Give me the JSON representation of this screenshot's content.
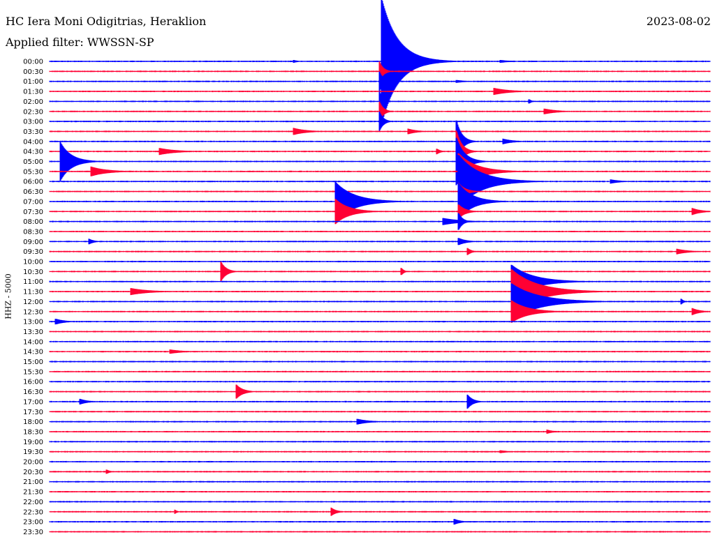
{
  "header": {
    "station": "HC Iera Moni Odigitrias, Heraklion",
    "filter": "Applied filter: WWSSN-SP",
    "date": "2023-08-02"
  },
  "chart_data": {
    "type": "line",
    "title": "HC Iera Moni Odigitrias, Heraklion",
    "subtitle": "Applied filter: WWSSN-SP",
    "ylabel": "HHZ - 5000",
    "xlabel": "",
    "grid": false,
    "legend": "none",
    "trace_colors": [
      "#0000ff",
      "#ff0033"
    ],
    "row_interval_minutes": 30,
    "rows": [
      "00:00",
      "00:30",
      "01:00",
      "01:30",
      "02:00",
      "02:30",
      "03:00",
      "03:30",
      "04:00",
      "04:30",
      "05:00",
      "05:30",
      "06:00",
      "06:30",
      "07:00",
      "07:30",
      "08:00",
      "08:30",
      "09:00",
      "09:30",
      "10:00",
      "10:30",
      "11:00",
      "11:30",
      "12:00",
      "12:30",
      "13:00",
      "13:30",
      "14:00",
      "14:30",
      "15:00",
      "15:30",
      "16:00",
      "16:30",
      "17:00",
      "17:30",
      "18:00",
      "18:30",
      "19:00",
      "19:30",
      "20:00",
      "20:30",
      "21:00",
      "21:30",
      "22:00",
      "22:30",
      "23:00",
      "23:30"
    ],
    "events": [
      {
        "row": 0,
        "minute": 15.1,
        "amp": 90,
        "dur": 1.2
      },
      {
        "row": 0,
        "minute": 11.1,
        "amp": 2,
        "dur": 0.4
      },
      {
        "row": 0,
        "minute": 20.5,
        "amp": 2,
        "dur": 0.8
      },
      {
        "row": 1,
        "minute": 15.0,
        "amp": 14,
        "dur": 0.3
      },
      {
        "row": 2,
        "minute": 15.0,
        "amp": 14,
        "dur": 0.3
      },
      {
        "row": 2,
        "minute": 18.5,
        "amp": 2,
        "dur": 0.8
      },
      {
        "row": 3,
        "minute": 20.2,
        "amp": 5,
        "dur": 1.2
      },
      {
        "row": 4,
        "minute": 15.0,
        "amp": 14,
        "dur": 0.3
      },
      {
        "row": 4,
        "minute": 21.8,
        "amp": 3,
        "dur": 0.2
      },
      {
        "row": 5,
        "minute": 15.0,
        "amp": 14,
        "dur": 0.3
      },
      {
        "row": 5,
        "minute": 22.5,
        "amp": 4,
        "dur": 1.0
      },
      {
        "row": 6,
        "minute": 15.0,
        "amp": 14,
        "dur": 0.3
      },
      {
        "row": 7,
        "minute": 11.1,
        "amp": 5,
        "dur": 1.0
      },
      {
        "row": 7,
        "minute": 16.3,
        "amp": 4,
        "dur": 0.7
      },
      {
        "row": 8,
        "minute": 18.5,
        "amp": 30,
        "dur": 0.4
      },
      {
        "row": 8,
        "minute": 20.6,
        "amp": 4,
        "dur": 0.8
      },
      {
        "row": 9,
        "minute": 5.0,
        "amp": 5,
        "dur": 1.3
      },
      {
        "row": 9,
        "minute": 18.5,
        "amp": 30,
        "dur": 0.4
      },
      {
        "row": 9,
        "minute": 17.6,
        "amp": 4,
        "dur": 0.3
      },
      {
        "row": 10,
        "minute": 0.5,
        "amp": 28,
        "dur": 0.8
      },
      {
        "row": 10,
        "minute": 18.5,
        "amp": 34,
        "dur": 0.6
      },
      {
        "row": 11,
        "minute": 1.9,
        "amp": 7,
        "dur": 1.2
      },
      {
        "row": 11,
        "minute": 18.6,
        "amp": 26,
        "dur": 1.3
      },
      {
        "row": 12,
        "minute": 18.6,
        "amp": 38,
        "dur": 1.6
      },
      {
        "row": 12,
        "minute": 25.5,
        "amp": 3,
        "dur": 0.8
      },
      {
        "row": 13,
        "minute": 18.6,
        "amp": 12,
        "dur": 0.5
      },
      {
        "row": 14,
        "minute": 13.0,
        "amp": 28,
        "dur": 1.4
      },
      {
        "row": 14,
        "minute": 18.6,
        "amp": 26,
        "dur": 1.0
      },
      {
        "row": 15,
        "minute": 13.0,
        "amp": 18,
        "dur": 1.0
      },
      {
        "row": 15,
        "minute": 18.6,
        "amp": 10,
        "dur": 0.5
      },
      {
        "row": 15,
        "minute": 29.2,
        "amp": 5,
        "dur": 0.7
      },
      {
        "row": 16,
        "minute": 17.9,
        "amp": 5,
        "dur": 1.4
      },
      {
        "row": 16,
        "minute": 18.6,
        "amp": 12,
        "dur": 0.3
      },
      {
        "row": 18,
        "minute": 1.8,
        "amp": 4,
        "dur": 0.4
      },
      {
        "row": 18,
        "minute": 18.6,
        "amp": 5,
        "dur": 0.6
      },
      {
        "row": 19,
        "minute": 19.0,
        "amp": 5,
        "dur": 0.3
      },
      {
        "row": 19,
        "minute": 28.5,
        "amp": 4,
        "dur": 0.9
      },
      {
        "row": 21,
        "minute": 7.8,
        "amp": 14,
        "dur": 0.4
      },
      {
        "row": 21,
        "minute": 16.0,
        "amp": 5,
        "dur": 0.2
      },
      {
        "row": 22,
        "minute": 21.0,
        "amp": 24,
        "dur": 1.6
      },
      {
        "row": 23,
        "minute": 21.0,
        "amp": 32,
        "dur": 1.9
      },
      {
        "row": 23,
        "minute": 3.7,
        "amp": 5,
        "dur": 1.4
      },
      {
        "row": 24,
        "minute": 21.0,
        "amp": 26,
        "dur": 2.0
      },
      {
        "row": 24,
        "minute": 28.7,
        "amp": 4,
        "dur": 0.2
      },
      {
        "row": 25,
        "minute": 21.0,
        "amp": 16,
        "dur": 1.2
      },
      {
        "row": 25,
        "minute": 29.2,
        "amp": 5,
        "dur": 0.6
      },
      {
        "row": 26,
        "minute": 0.3,
        "amp": 4,
        "dur": 0.7
      },
      {
        "row": 29,
        "minute": 5.5,
        "amp": 3,
        "dur": 1.0
      },
      {
        "row": 33,
        "minute": 8.5,
        "amp": 10,
        "dur": 0.5
      },
      {
        "row": 34,
        "minute": 19.0,
        "amp": 10,
        "dur": 0.4
      },
      {
        "row": 34,
        "minute": 1.4,
        "amp": 4,
        "dur": 0.6
      },
      {
        "row": 36,
        "minute": 14.0,
        "amp": 4,
        "dur": 0.9
      },
      {
        "row": 37,
        "minute": 22.6,
        "amp": 3,
        "dur": 0.5
      },
      {
        "row": 39,
        "minute": 20.5,
        "amp": 2,
        "dur": 0.7
      },
      {
        "row": 41,
        "minute": 2.6,
        "amp": 3,
        "dur": 0.3
      },
      {
        "row": 45,
        "minute": 12.8,
        "amp": 6,
        "dur": 0.4
      },
      {
        "row": 45,
        "minute": 5.7,
        "amp": 3,
        "dur": 0.2
      },
      {
        "row": 46,
        "minute": 18.4,
        "amp": 4,
        "dur": 0.5
      }
    ]
  }
}
